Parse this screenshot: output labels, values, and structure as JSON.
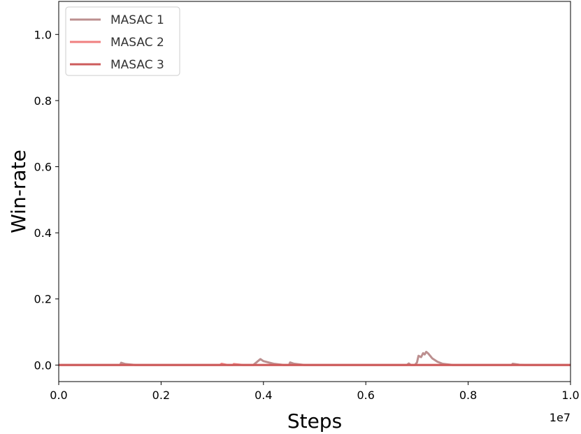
{
  "chart_data": {
    "type": "line",
    "title": "",
    "xlabel": "Steps",
    "ylabel": "Win-rate",
    "x_offset_label": "1e7",
    "xlim": [
      0,
      1.0
    ],
    "ylim": [
      -0.05,
      1.1
    ],
    "x_ticks": [
      "0.0",
      "0.2",
      "0.4",
      "0.6",
      "0.8",
      "1.0"
    ],
    "y_ticks": [
      "0.0",
      "0.2",
      "0.4",
      "0.6",
      "0.8",
      "1.0"
    ],
    "grid": false,
    "legend_position": "top-left",
    "series": [
      {
        "name": "MASAC 1",
        "color": "#bc8f8f",
        "points": [
          [
            0.0,
            0.0
          ],
          [
            0.12,
            0.0
          ],
          [
            0.122,
            0.007
          ],
          [
            0.13,
            0.003
          ],
          [
            0.15,
            0.0
          ],
          [
            0.38,
            0.0
          ],
          [
            0.394,
            0.018
          ],
          [
            0.4,
            0.012
          ],
          [
            0.42,
            0.004
          ],
          [
            0.44,
            0.0
          ],
          [
            0.45,
            0.0
          ],
          [
            0.452,
            0.008
          ],
          [
            0.46,
            0.004
          ],
          [
            0.48,
            0.0
          ],
          [
            0.68,
            0.0
          ],
          [
            0.684,
            0.005
          ],
          [
            0.688,
            0.0
          ],
          [
            0.696,
            0.0
          ],
          [
            0.7,
            0.008
          ],
          [
            0.703,
            0.028
          ],
          [
            0.708,
            0.024
          ],
          [
            0.712,
            0.036
          ],
          [
            0.715,
            0.032
          ],
          [
            0.718,
            0.04
          ],
          [
            0.722,
            0.035
          ],
          [
            0.73,
            0.02
          ],
          [
            0.74,
            0.01
          ],
          [
            0.75,
            0.004
          ],
          [
            0.77,
            0.0
          ],
          [
            0.885,
            0.0
          ],
          [
            0.887,
            0.004
          ],
          [
            0.9,
            0.001
          ],
          [
            0.91,
            0.0
          ],
          [
            1.0,
            0.0
          ]
        ]
      },
      {
        "name": "MASAC 2",
        "color": "#f08080",
        "points": [
          [
            0.0,
            0.0
          ],
          [
            0.315,
            0.0
          ],
          [
            0.318,
            0.004
          ],
          [
            0.33,
            0.0
          ],
          [
            0.34,
            0.0
          ],
          [
            0.342,
            0.003
          ],
          [
            0.36,
            0.0
          ],
          [
            1.0,
            0.0
          ]
        ]
      },
      {
        "name": "MASAC 3",
        "color": "#cd5c5c",
        "points": [
          [
            0.0,
            0.0
          ],
          [
            1.0,
            0.0
          ]
        ]
      }
    ]
  }
}
